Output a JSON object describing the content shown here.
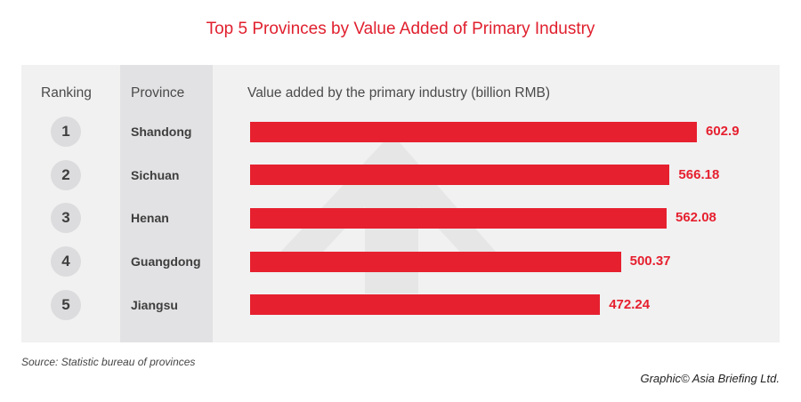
{
  "chart_data": {
    "type": "bar",
    "orientation": "horizontal",
    "title": "Top 5 Provinces by Value Added of Primary Industry",
    "columns": {
      "ranking": "Ranking",
      "province": "Province",
      "value": "Value added by the primary industry (billion RMB)"
    },
    "rows": [
      {
        "rank": "1",
        "province": "Shandong",
        "value": 602.9,
        "label": "602.9"
      },
      {
        "rank": "2",
        "province": "Sichuan",
        "value": 566.18,
        "label": "566.18"
      },
      {
        "rank": "3",
        "province": "Henan",
        "value": 562.08,
        "label": "562.08"
      },
      {
        "rank": "4",
        "province": "Guangdong",
        "value": 500.37,
        "label": "500.37"
      },
      {
        "rank": "5",
        "province": "Jiangsu",
        "value": 472.24,
        "label": "472.24"
      }
    ],
    "xlim": [
      0,
      602.9
    ],
    "grid": false,
    "colors": {
      "bar": "#e6202f",
      "title": "#e0202e"
    }
  },
  "footer": {
    "source": "Source: Statistic bureau of provinces",
    "credit": "Graphic© Asia Briefing Ltd."
  }
}
